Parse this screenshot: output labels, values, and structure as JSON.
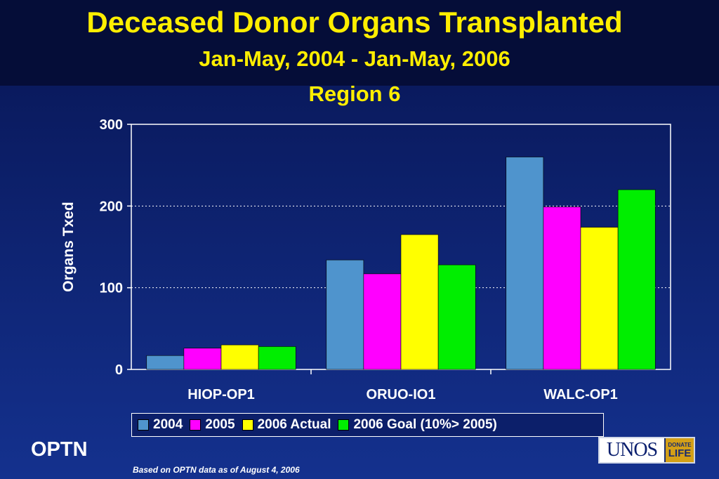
{
  "header": {
    "title": "Deceased Donor Organs Transplanted",
    "subtitle": "Jan-May, 2004 - Jan-May, 2006",
    "region": "Region 6"
  },
  "footer": {
    "brand": "OPTN",
    "note": "Based on OPTN data as of August 4, 2006",
    "logo_text": "UNOS",
    "logo_badge_top": "DONATE",
    "logo_badge_bottom": "LIFE"
  },
  "chart_data": {
    "type": "bar",
    "title": "",
    "xlabel": "",
    "ylabel": "Organs Txed",
    "ylim": [
      0,
      300
    ],
    "yticks": [
      0,
      100,
      200,
      300
    ],
    "grid": true,
    "legend_position": "bottom",
    "categories": [
      "HIOP-OP1",
      "ORUO-IO1",
      "WALC-OP1"
    ],
    "series": [
      {
        "name": "2004",
        "color": "#4f94cd",
        "values": [
          17,
          134,
          260
        ]
      },
      {
        "name": "2005",
        "color": "#ff00ff",
        "values": [
          26,
          117,
          199
        ]
      },
      {
        "name": "2006 Actual",
        "color": "#ffff00",
        "values": [
          30,
          165,
          174
        ]
      },
      {
        "name": "2006 Goal (10%> 2005)",
        "color": "#00ee00",
        "values": [
          28,
          128,
          220
        ]
      }
    ]
  }
}
